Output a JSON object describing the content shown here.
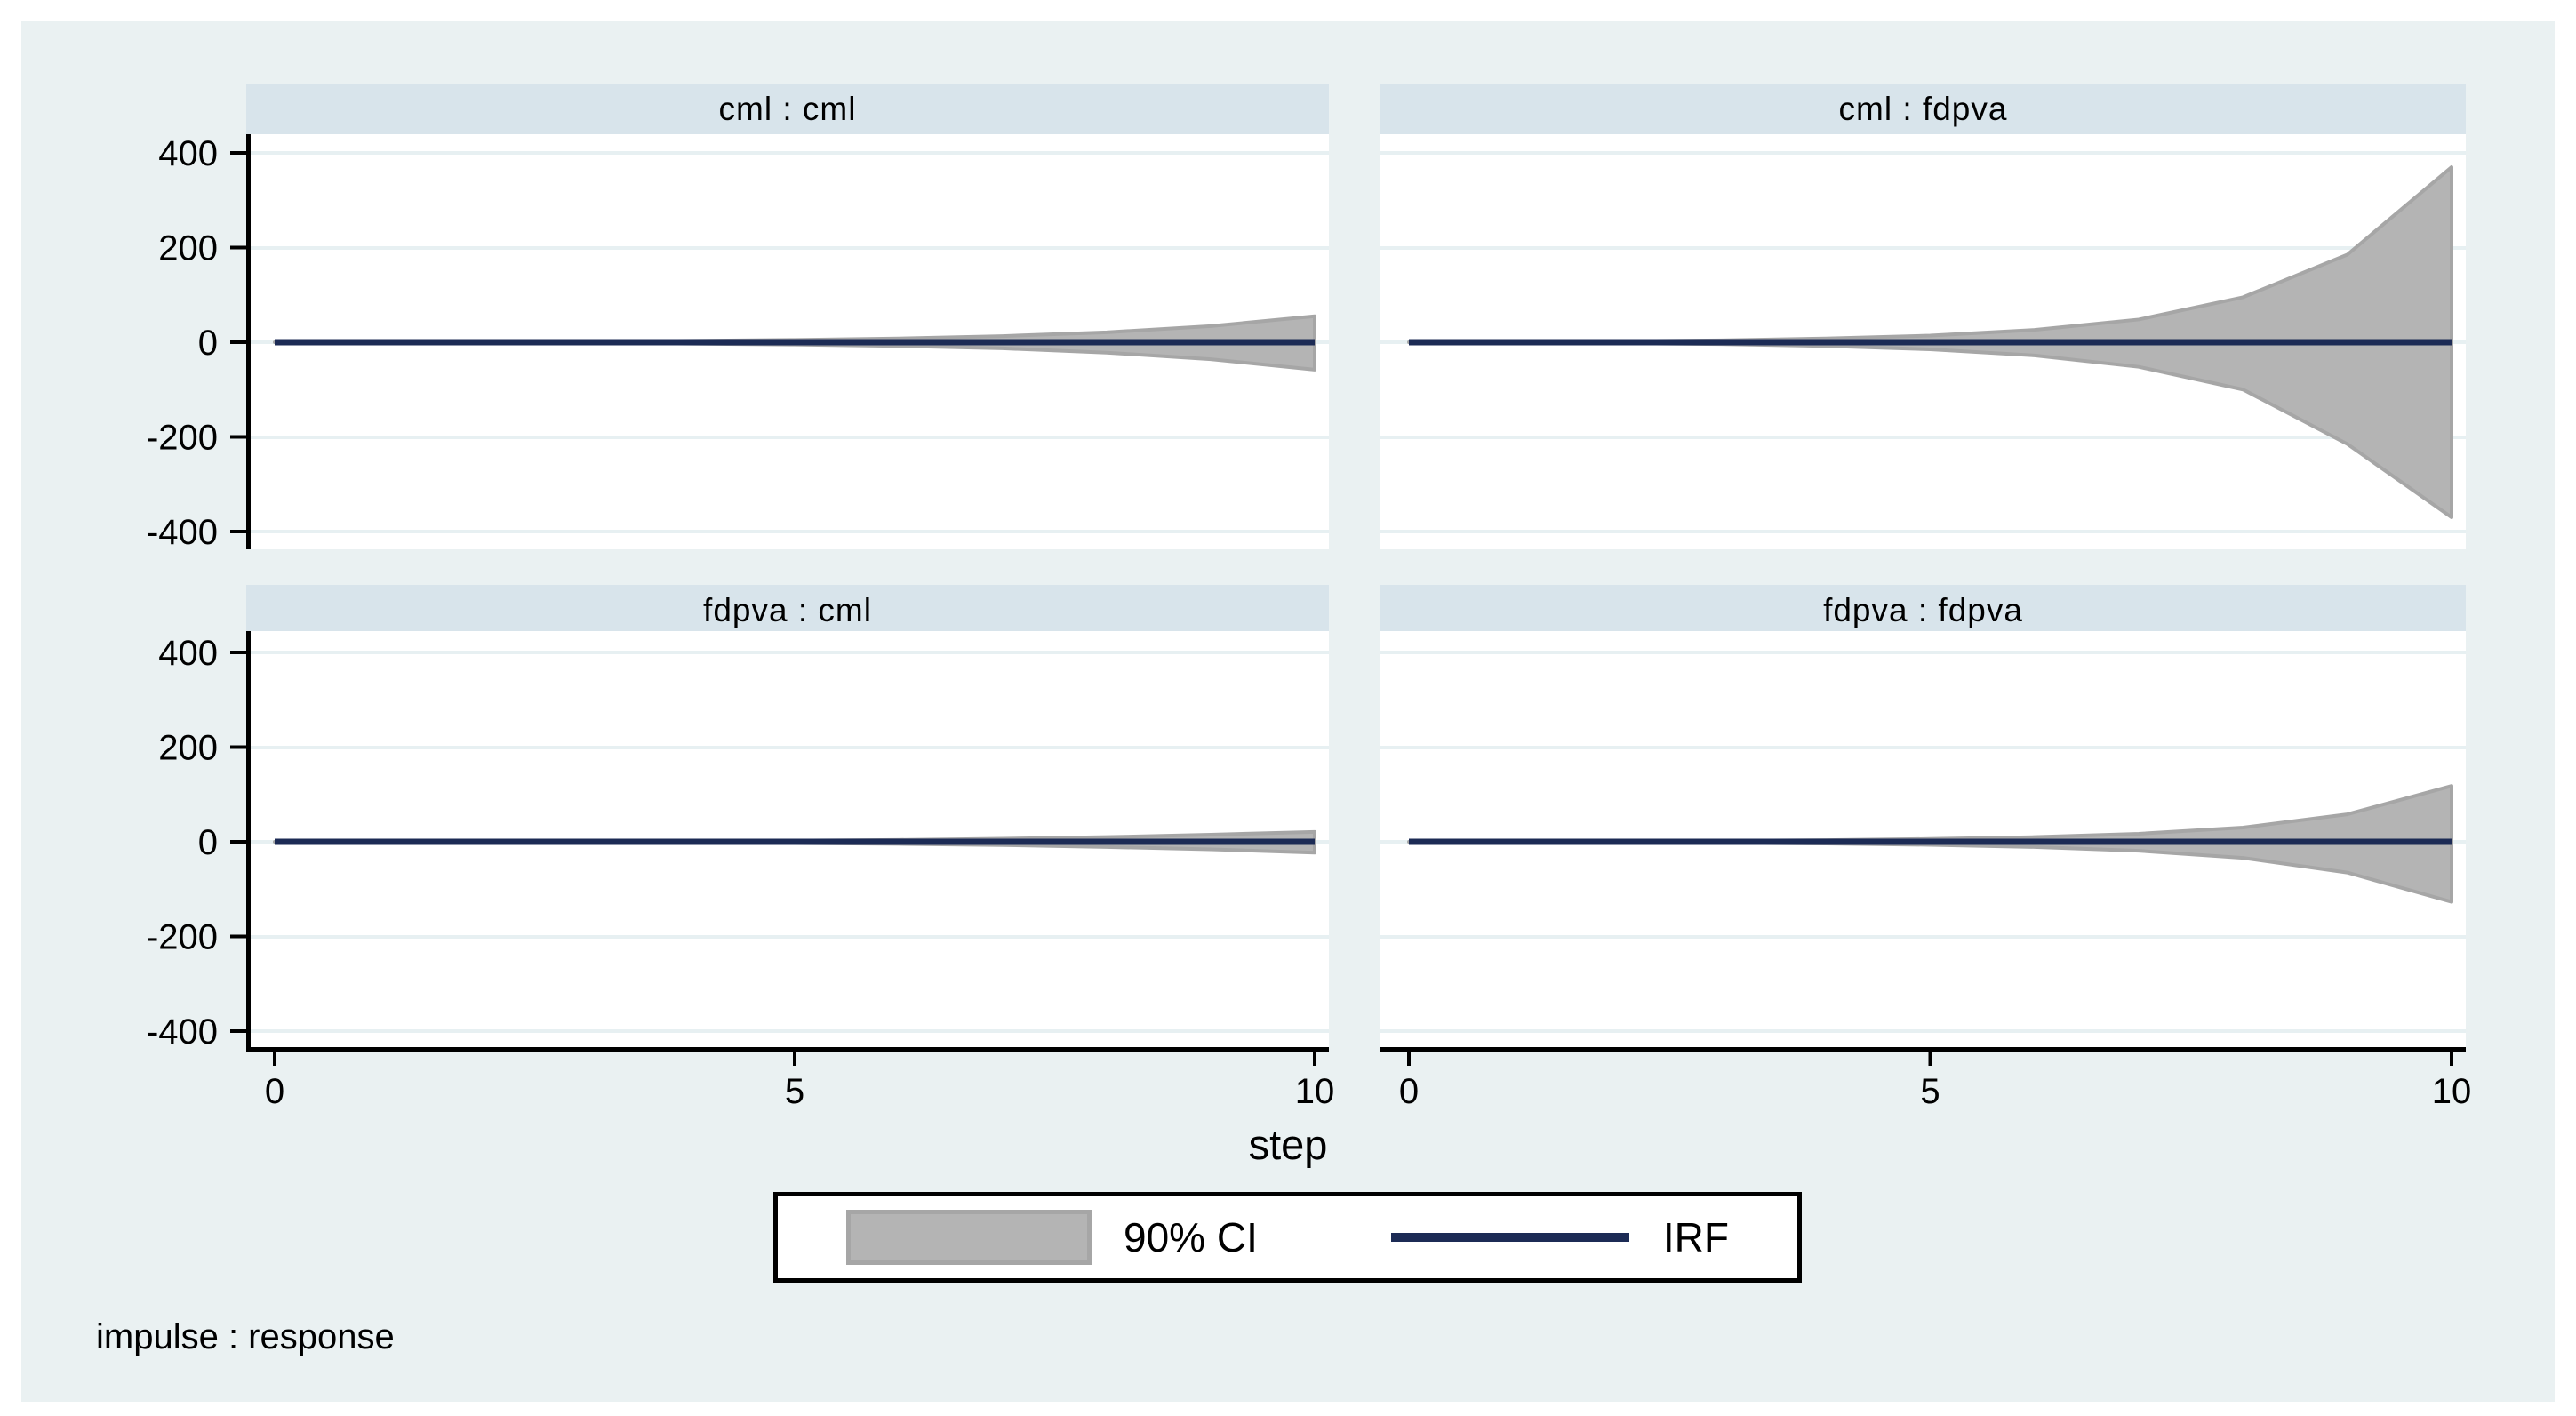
{
  "chart_data": {
    "type": "area",
    "subtype": "impulse-response-fan-grid",
    "x": [
      0,
      1,
      2,
      3,
      4,
      5,
      6,
      7,
      8,
      9,
      10
    ],
    "xlabel": "step",
    "x_ticks": [
      0,
      5,
      10
    ],
    "y_ticks": [
      400,
      200,
      0,
      -200,
      -400
    ],
    "ylim": [
      -450,
      450
    ],
    "grid": true,
    "legend": [
      "90% CI",
      "IRF"
    ],
    "legend_position": "bottom-center",
    "ci_level": "90%",
    "footnote": "impulse : response",
    "panels": [
      {
        "title": "cml : cml",
        "impulse": "cml",
        "response": "cml",
        "irf": [
          0,
          0,
          0,
          0,
          0,
          0,
          0,
          0,
          0,
          0,
          0
        ],
        "ci_upper": [
          0,
          0.5,
          1,
          2,
          3,
          5,
          8,
          13,
          21,
          34,
          55
        ],
        "ci_lower": [
          0,
          -0.5,
          -1,
          -2,
          -3,
          -5,
          -8,
          -13,
          -22,
          -36,
          -58
        ]
      },
      {
        "title": "cml : fdpva",
        "impulse": "cml",
        "response": "fdpva",
        "irf": [
          0,
          0,
          0,
          0,
          0,
          0,
          0,
          0,
          0,
          0,
          0
        ],
        "ci_upper": [
          0,
          1,
          2,
          4,
          8,
          14,
          26,
          48,
          95,
          185,
          370
        ],
        "ci_lower": [
          0,
          -1,
          -2,
          -4,
          -8,
          -15,
          -28,
          -52,
          -100,
          -215,
          -370
        ]
      },
      {
        "title": "fdpva : cml",
        "impulse": "fdpva",
        "response": "cml",
        "irf": [
          0,
          0,
          0,
          0,
          0,
          0,
          0,
          0,
          0,
          0,
          0
        ],
        "ci_upper": [
          0,
          0.3,
          0.6,
          1,
          1.6,
          2.5,
          4,
          6.5,
          10,
          15,
          21
        ],
        "ci_lower": [
          0,
          -0.3,
          -0.6,
          -1,
          -1.7,
          -2.7,
          -4.5,
          -7,
          -11,
          -16,
          -23
        ]
      },
      {
        "title": "fdpva : fdpva",
        "impulse": "fdpva",
        "response": "fdpva",
        "irf": [
          0,
          0,
          0,
          0,
          0,
          0,
          0,
          0,
          0,
          0,
          0
        ],
        "ci_upper": [
          0,
          0.5,
          1,
          2,
          3.5,
          6,
          10,
          17,
          30,
          58,
          118
        ],
        "ci_lower": [
          0,
          -0.5,
          -1,
          -2,
          -3.8,
          -6.5,
          -11,
          -19,
          -34,
          -65,
          -127
        ]
      }
    ]
  },
  "colors": {
    "page_bg": "#ffffff",
    "graph_bg": "#eaf1f2",
    "header_bg": "#d8e4eb",
    "gridline": "#e7f0f2",
    "ci_fill": "#b4b4b4",
    "ci_edge": "#a6a6a6",
    "irf_line": "#1c2b55",
    "axis": "#000000"
  }
}
